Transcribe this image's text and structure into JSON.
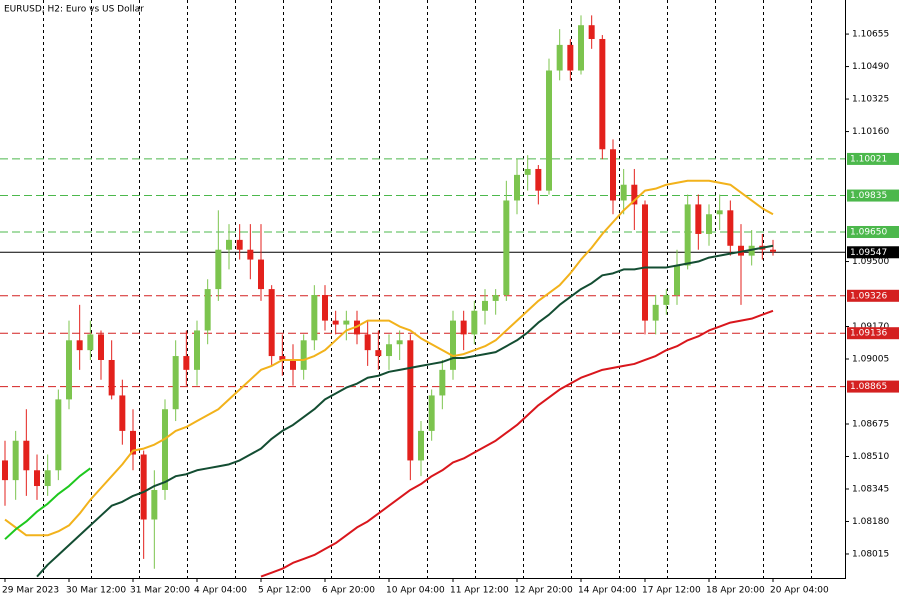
{
  "chart_data": {
    "type": "candlestick",
    "title": "EURUSD, H2:  Euro vs US Dollar",
    "categories": [
      "29 Mar 2023",
      null,
      null,
      null,
      null,
      null,
      "30 Mar 12:00",
      null,
      null,
      null,
      null,
      null,
      "31 Mar 20:00",
      null,
      null,
      null,
      null,
      null,
      "4 Apr 04:00",
      null,
      null,
      null,
      null,
      null,
      "5 Apr 12:00",
      null,
      null,
      null,
      null,
      null,
      "6 Apr 20:00",
      null,
      null,
      null,
      null,
      null,
      "10 Apr 04:00",
      null,
      null,
      null,
      null,
      null,
      "11 Apr 12:00",
      null,
      null,
      null,
      null,
      null,
      "12 Apr 20:00",
      null,
      null,
      null,
      null,
      null,
      "14 Apr 04:00",
      null,
      null,
      null,
      null,
      null,
      "17 Apr 12:00",
      null,
      null,
      null,
      null,
      null,
      "18 Apr 20:00",
      null,
      null,
      null,
      null,
      null,
      "20 Apr 04:00"
    ],
    "open": [
      1.0849,
      1.0839,
      1.0859,
      1.0844,
      1.0836,
      1.0844,
      1.088,
      1.091,
      1.0905,
      1.0913,
      1.09,
      1.0882,
      1.0864,
      1.0852,
      1.0819,
      1.0834,
      1.0875,
      1.0902,
      1.0895,
      1.0915,
      1.0936,
      1.0956,
      1.0961,
      1.0956,
      1.0951,
      1.0936,
      1.0902,
      1.09,
      1.0895,
      1.091,
      1.0933,
      1.092,
      1.0918,
      1.092,
      1.0913,
      1.0905,
      1.0902,
      1.0908,
      1.091,
      1.0849,
      1.0864,
      1.0882,
      1.0895,
      1.092,
      1.0913,
      1.0925,
      1.093,
      1.0933,
      1.0981,
      1.0994,
      1.0997,
      1.0986,
      1.1047,
      1.106,
      1.1047,
      1.107,
      1.1063,
      1.1007,
      1.0981,
      1.0989,
      1.0979,
      1.092,
      1.0928,
      1.0933,
      1.0948,
      1.0979,
      1.0964,
      1.0974,
      1.0976,
      1.0958,
      1.0953,
      1.0958,
      1.0956
    ],
    "high": [
      1.0859,
      1.0864,
      1.0875,
      1.0852,
      1.0852,
      1.0885,
      1.092,
      1.0928,
      1.092,
      1.0915,
      1.091,
      1.089,
      1.0875,
      1.0854,
      1.0844,
      1.088,
      1.091,
      1.0915,
      1.092,
      1.0941,
      1.0976,
      1.0969,
      1.0969,
      1.0969,
      1.0969,
      1.0938,
      1.0913,
      1.0908,
      1.0913,
      1.0938,
      1.0938,
      1.0925,
      1.0925,
      1.0925,
      1.092,
      1.0915,
      1.0913,
      1.0915,
      1.0913,
      1.0869,
      1.0885,
      1.09,
      1.0925,
      1.0925,
      1.093,
      1.0936,
      1.0936,
      1.0991,
      1.1002,
      1.1004,
      1.0999,
      1.1053,
      1.1068,
      1.1063,
      1.1075,
      1.1075,
      1.1065,
      1.1012,
      1.0997,
      1.0997,
      1.0981,
      1.0933,
      1.0936,
      1.0956,
      1.0984,
      1.0984,
      1.0979,
      1.0984,
      1.0981,
      1.0969,
      1.0966,
      1.0964,
      1.0961
    ],
    "low": [
      1.0826,
      1.0829,
      1.0831,
      1.0829,
      1.0831,
      1.0839,
      1.0875,
      1.0895,
      1.09,
      1.089,
      1.088,
      1.0857,
      1.0844,
      1.0799,
      1.0794,
      1.0829,
      1.0869,
      1.0887,
      1.0887,
      1.0908,
      1.093,
      1.0946,
      1.0951,
      1.0941,
      1.093,
      1.0897,
      1.0892,
      1.0887,
      1.089,
      1.0905,
      1.0915,
      1.0913,
      1.091,
      1.0908,
      1.0897,
      1.0895,
      1.0895,
      1.09,
      1.0839,
      1.0841,
      1.0859,
      1.0875,
      1.089,
      1.0905,
      1.0908,
      1.0918,
      1.0923,
      1.093,
      1.0974,
      1.0986,
      1.0979,
      1.0984,
      1.1042,
      1.1042,
      1.1045,
      1.1058,
      1.1002,
      1.0974,
      1.0974,
      1.0966,
      1.0913,
      1.0913,
      1.0923,
      1.0928,
      1.0946,
      1.0956,
      1.0958,
      1.0966,
      1.0953,
      1.0928,
      1.0948,
      1.0951,
      1.0953
    ],
    "close": [
      1.0839,
      1.0859,
      1.0844,
      1.0836,
      1.0844,
      1.088,
      1.091,
      1.0905,
      1.0913,
      1.09,
      1.0882,
      1.0864,
      1.0852,
      1.0819,
      1.0834,
      1.0875,
      1.0902,
      1.0895,
      1.0915,
      1.0936,
      1.0956,
      1.0961,
      1.0956,
      1.0951,
      1.0936,
      1.0902,
      1.09,
      1.0895,
      1.091,
      1.0933,
      1.092,
      1.0918,
      1.092,
      1.0913,
      1.0905,
      1.0902,
      1.0908,
      1.091,
      1.0849,
      1.0864,
      1.0882,
      1.0895,
      1.092,
      1.0913,
      1.0925,
      1.093,
      1.0933,
      1.0981,
      1.0994,
      1.0997,
      1.0986,
      1.1047,
      1.106,
      1.1047,
      1.107,
      1.1063,
      1.1007,
      1.0981,
      1.0989,
      1.0979,
      1.092,
      1.0928,
      1.0933,
      1.0948,
      1.0979,
      1.0964,
      1.0974,
      1.0976,
      1.0958,
      1.0953,
      1.0958,
      1.0956,
      1.0955
    ],
    "up_color": "#7cc44e",
    "down_color": "#e3211c",
    "lines": [
      {
        "color": "#f2b21b",
        "values": [
          1.0819,
          1.0815,
          1.0811,
          1.0811,
          1.0811,
          1.0813,
          1.0816,
          1.0822,
          1.0829,
          1.0835,
          1.0841,
          1.0847,
          1.0854,
          1.0855,
          1.0857,
          1.086,
          1.0864,
          1.0866,
          1.0869,
          1.0872,
          1.0875,
          1.088,
          1.0885,
          1.089,
          1.0895,
          1.0897,
          1.09,
          1.09,
          1.09,
          1.0902,
          1.0905,
          1.091,
          1.0915,
          1.0917,
          1.092,
          1.092,
          1.092,
          1.0917,
          1.0915,
          1.0911,
          1.0908,
          1.0905,
          1.0902,
          1.0903,
          1.0905,
          1.0907,
          1.091,
          1.0915,
          1.092,
          1.0925,
          1.093,
          1.0934,
          1.0938,
          1.0944,
          1.0951,
          1.0957,
          1.0964,
          1.097,
          1.0976,
          1.0981,
          1.0986,
          1.0987,
          1.0989,
          1.099,
          1.0991,
          1.0991,
          1.0991,
          1.099,
          1.0989,
          1.0985,
          1.0981,
          1.0977,
          1.0974
        ]
      },
      {
        "color": "#134d32",
        "values": [
          null,
          null,
          null,
          1.079,
          1.0796,
          1.0801,
          1.0806,
          1.0811,
          1.0816,
          1.0821,
          1.0826,
          1.0828,
          1.0831,
          1.0833,
          1.0836,
          1.0838,
          1.0841,
          1.0842,
          1.0844,
          1.0845,
          1.0846,
          1.0847,
          1.0849,
          1.0852,
          1.0855,
          1.086,
          1.0864,
          1.0867,
          1.0871,
          1.0875,
          1.088,
          1.0883,
          1.0886,
          1.0888,
          1.0891,
          1.0892,
          1.0894,
          1.0895,
          1.0896,
          1.0897,
          1.0898,
          1.0899,
          1.0901,
          1.0901,
          1.0902,
          1.0903,
          1.0904,
          1.0907,
          1.091,
          1.0914,
          1.0919,
          1.0923,
          1.0928,
          1.0932,
          1.0936,
          1.0939,
          1.0943,
          1.0944,
          1.0946,
          1.0946,
          1.0947,
          1.0947,
          1.0947,
          1.0948,
          1.0949,
          1.095,
          1.0952,
          1.0953,
          1.0954,
          1.0955,
          1.0956,
          1.0957,
          1.0958
        ]
      },
      {
        "color": "#d9161c",
        "values": [
          null,
          null,
          null,
          null,
          null,
          null,
          null,
          null,
          null,
          null,
          null,
          null,
          null,
          null,
          null,
          null,
          null,
          null,
          null,
          null,
          null,
          null,
          null,
          null,
          1.079,
          1.0792,
          1.0794,
          1.0797,
          1.0799,
          1.0801,
          1.0804,
          1.0807,
          1.0811,
          1.0815,
          1.0818,
          1.0822,
          1.0826,
          1.083,
          1.0834,
          1.0837,
          1.0841,
          1.0844,
          1.0848,
          1.085,
          1.0853,
          1.0856,
          1.0859,
          1.0863,
          1.0867,
          1.0872,
          1.0877,
          1.0881,
          1.0885,
          1.0888,
          1.0891,
          1.0893,
          1.0895,
          1.0896,
          1.0897,
          1.0898,
          1.09,
          1.0902,
          1.0905,
          1.0907,
          1.091,
          1.0912,
          1.0915,
          1.0917,
          1.0919,
          1.092,
          1.0921,
          1.0923,
          1.0925
        ]
      },
      {
        "color": "#1ec81e",
        "values": [
          1.0809,
          1.0814,
          1.0818,
          1.0823,
          1.0827,
          1.0832,
          1.0836,
          1.0841,
          1.0845,
          null,
          null,
          null,
          null,
          null,
          null,
          null,
          null,
          null,
          null,
          null,
          null,
          null,
          null,
          null,
          null,
          null,
          null,
          null,
          null,
          null,
          null,
          null,
          null,
          null,
          null,
          null,
          null,
          null,
          null,
          null,
          null,
          null,
          null,
          null,
          null,
          null,
          null,
          null,
          null,
          null,
          null,
          null,
          null,
          null,
          null,
          null,
          null,
          null,
          null,
          null,
          null,
          null,
          null,
          null,
          null,
          null,
          null,
          null,
          null,
          null,
          null,
          null,
          null
        ]
      }
    ],
    "levels": [
      {
        "value": 1.10021,
        "color": "#4cb84c",
        "style": "dashed"
      },
      {
        "value": 1.09835,
        "color": "#4cb84c",
        "style": "dashed"
      },
      {
        "value": 1.0965,
        "label": "1.09650",
        "color": "#4cb84c",
        "style": "dashed"
      },
      {
        "value": 1.09547,
        "color": "#000000",
        "style": "solid"
      },
      {
        "value": 1.09326,
        "color": "#d42020",
        "style": "dashed"
      },
      {
        "value": 1.09136,
        "color": "#d42020",
        "style": "dashed"
      },
      {
        "value": 1.08865,
        "color": "#d42020",
        "style": "dashed"
      }
    ],
    "ylim": [
      1.07893,
      1.10828
    ],
    "yticks": [
      1.10655,
      {
        "value": 1.1049,
        "label": "1.10490"
      },
      1.10325,
      {
        "value": 1.1016,
        "label": "1.10160"
      },
      {
        "value": 1.095,
        "label": "1.09500"
      },
      {
        "value": 1.0917,
        "label": "1.09170"
      },
      1.09005,
      1.08675,
      {
        "value": 1.0851,
        "label": "1.08510"
      },
      1.08345,
      {
        "value": 1.0818,
        "label": "1.08180"
      },
      1.08015
    ]
  }
}
